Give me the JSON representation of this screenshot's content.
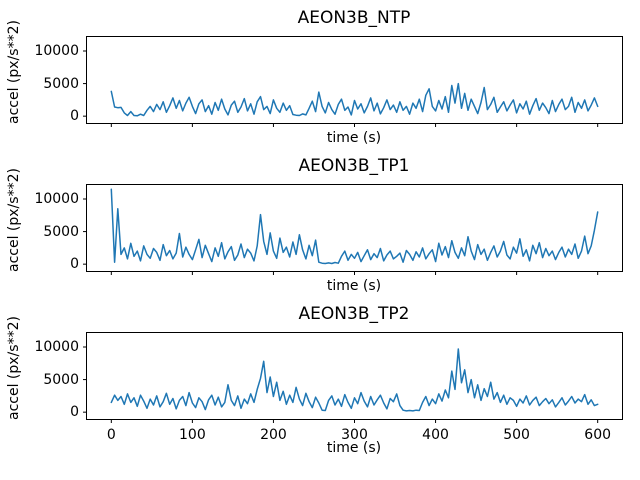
{
  "figure": {
    "background": "#ffffff",
    "line_color": "#1f77b4",
    "spine_color": "#000000"
  },
  "chart_data": [
    {
      "type": "line",
      "title": "AEON3B_NTP",
      "xlabel": "time (s)",
      "ylabel": "accel (px/s**2)",
      "xlim": [
        -30,
        630
      ],
      "ylim": [
        -1050,
        12150
      ],
      "xticks": [
        0,
        100,
        200,
        300,
        400,
        500,
        600
      ],
      "yticks": [
        0,
        5000,
        10000
      ],
      "show_xticklabels": false,
      "grid": false,
      "legend": null,
      "x_start": 0,
      "x_step": 4,
      "values": [
        3800,
        1400,
        1300,
        1350,
        500,
        100,
        700,
        100,
        50,
        300,
        100,
        900,
        1500,
        700,
        1800,
        1000,
        2200,
        600,
        1600,
        2800,
        1200,
        2400,
        800,
        2000,
        2900,
        1500,
        400,
        1900,
        2500,
        700,
        1600,
        300,
        2100,
        900,
        2600,
        1100,
        200,
        1700,
        2300,
        600,
        1400,
        2700,
        800,
        1900,
        300,
        2200,
        3000,
        1000,
        1500,
        400,
        2500,
        1200,
        600,
        2000,
        900,
        1600,
        250,
        150,
        100,
        350,
        200,
        1200,
        2300,
        700,
        3700,
        1500,
        500,
        2100,
        1000,
        300,
        1800,
        2600,
        900,
        1400,
        200,
        2400,
        1100,
        1900,
        500,
        1500,
        2800,
        800,
        2000,
        350,
        1300,
        2500,
        1000,
        1700,
        600,
        2200,
        900,
        1500,
        300,
        2000,
        1200,
        2600,
        700,
        3200,
        4200,
        1500,
        800,
        2400,
        1100,
        3000,
        600,
        4700,
        2000,
        5000,
        1200,
        3500,
        900,
        2600,
        1500,
        400,
        2100,
        4400,
        1000,
        1800,
        2900,
        600,
        1400,
        2200,
        800,
        1700,
        2500,
        500,
        1900,
        1100,
        2300,
        300,
        1600,
        2700,
        900,
        2000,
        1300,
        400,
        2400,
        700,
        1800,
        2600,
        1000,
        1500,
        2900,
        600,
        2100,
        1200,
        2500,
        800,
        1700,
        2800,
        1500
      ]
    },
    {
      "type": "line",
      "title": "AEON3B_TP1",
      "xlabel": "time (s)",
      "ylabel": "accel (px/s**2)",
      "xlim": [
        -30,
        630
      ],
      "ylim": [
        -1050,
        12150
      ],
      "xticks": [
        0,
        100,
        200,
        300,
        400,
        500,
        600
      ],
      "yticks": [
        0,
        5000,
        10000
      ],
      "show_xticklabels": false,
      "grid": false,
      "legend": null,
      "x_start": 0,
      "x_step": 4,
      "values": [
        11500,
        300,
        8500,
        1500,
        2500,
        800,
        3200,
        1200,
        2000,
        500,
        2800,
        1500,
        900,
        2400,
        1800,
        600,
        3000,
        1300,
        2100,
        800,
        1700,
        4700,
        1100,
        2600,
        1500,
        700,
        2200,
        3800,
        1000,
        2900,
        1600,
        400,
        2500,
        1200,
        3300,
        800,
        1900,
        2700,
        600,
        1400,
        3100,
        1000,
        2300,
        1700,
        500,
        2800,
        7600,
        3500,
        1500,
        4800,
        2000,
        900,
        4000,
        1800,
        2600,
        1100,
        3400,
        1500,
        4500,
        2200,
        800,
        2900,
        1300,
        3700,
        300,
        150,
        100,
        200,
        100,
        250,
        150,
        1200,
        2000,
        600,
        1500,
        900,
        1800,
        400,
        1300,
        2200,
        700,
        1600,
        1000,
        2400,
        500,
        1400,
        2000,
        800,
        1200,
        1700,
        300,
        2100,
        1500,
        600,
        1900,
        1100,
        2500,
        800,
        1600,
        2200,
        400,
        3200,
        1400,
        2700,
        1000,
        3600,
        1800,
        900,
        2500,
        1300,
        4200,
        2000,
        700,
        3000,
        1500,
        2300,
        600,
        1800,
        2800,
        1100,
        2000,
        3500,
        1400,
        800,
        2600,
        1700,
        3900,
        1200,
        2200,
        500,
        2900,
        1600,
        3300,
        1000,
        2400,
        1300,
        2000,
        700,
        1800,
        2600,
        1100,
        2300,
        1500,
        3100,
        900,
        2000,
        4300,
        1600,
        2800,
        5200,
        8000
      ]
    },
    {
      "type": "line",
      "title": "AEON3B_TP2",
      "xlabel": "time (s)",
      "ylabel": "accel (px/s**2)",
      "xlim": [
        -30,
        630
      ],
      "ylim": [
        -1050,
        12150
      ],
      "xticks": [
        0,
        100,
        200,
        300,
        400,
        500,
        600
      ],
      "yticks": [
        0,
        5000,
        10000
      ],
      "show_xticklabels": true,
      "grid": false,
      "legend": null,
      "x_start": 0,
      "x_step": 4,
      "values": [
        1500,
        2600,
        1800,
        2400,
        1200,
        2800,
        1500,
        2200,
        900,
        2600,
        1700,
        600,
        2000,
        1100,
        2500,
        800,
        1600,
        2900,
        1200,
        2100,
        500,
        1800,
        2400,
        1000,
        3000,
        1400,
        700,
        2200,
        1600,
        400,
        1900,
        2600,
        1100,
        2300,
        800,
        1500,
        4200,
        1800,
        1000,
        2500,
        600,
        2000,
        1300,
        2800,
        1500,
        3500,
        5200,
        7800,
        3000,
        5400,
        2400,
        4600,
        1800,
        3200,
        1200,
        2600,
        1500,
        3800,
        2000,
        1000,
        2900,
        1600,
        700,
        2300,
        1400,
        300,
        250,
        1800,
        2500,
        1100,
        2000,
        900,
        2700,
        1500,
        600,
        2200,
        1300,
        3000,
        1700,
        800,
        2400,
        1100,
        1900,
        2600,
        1400,
        500,
        2100,
        1600,
        2800,
        1000,
        300,
        200,
        250,
        200,
        300,
        250,
        1500,
        2400,
        1000,
        2000,
        1300,
        2800,
        1700,
        3400,
        2200,
        6300,
        3500,
        9700,
        4500,
        6500,
        3000,
        5000,
        2200,
        4200,
        1800,
        3600,
        2400,
        4600,
        2000,
        3000,
        1500,
        2600,
        1200,
        2200,
        1800,
        900,
        2000,
        1400,
        2500,
        1100,
        1800,
        2300,
        1000,
        1600,
        2100,
        1300,
        1900,
        800,
        1500,
        2200,
        1100,
        1700,
        2400,
        1400,
        2000,
        1600,
        2700,
        1200,
        1900,
        1000,
        1200
      ]
    }
  ]
}
